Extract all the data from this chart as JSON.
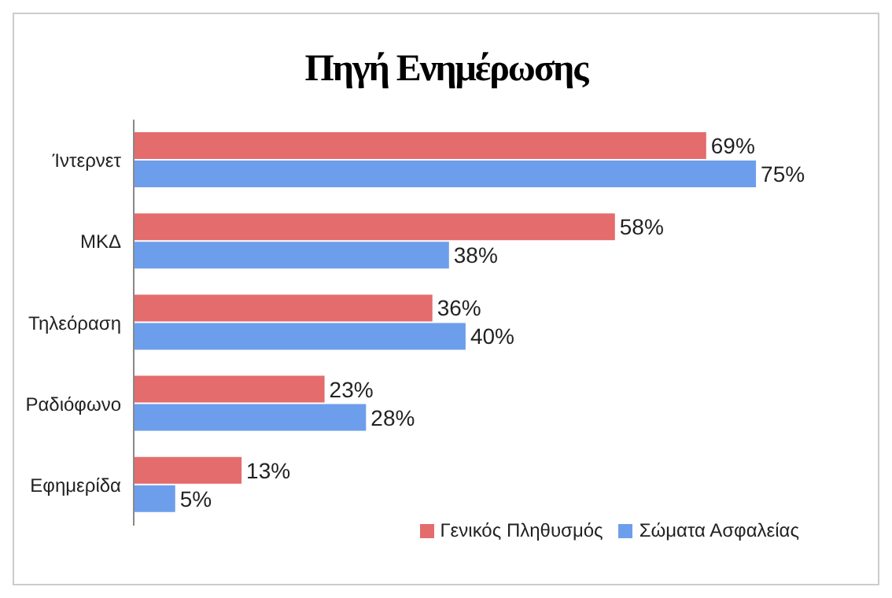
{
  "chart_data": {
    "type": "bar",
    "orientation": "horizontal",
    "title": "Πηγή Ενημέρωσης",
    "categories": [
      "Ίντερνετ",
      "ΜΚΔ",
      "Τηλεόραση",
      "Ραδιόφωνο",
      "Εφημερίδα"
    ],
    "series": [
      {
        "name": "Γενικός Πληθυσμός",
        "color": "#e46c6c",
        "values": [
          69,
          58,
          36,
          23,
          13
        ],
        "value_labels": [
          "69%",
          "58%",
          "36%",
          "23%",
          "13%"
        ]
      },
      {
        "name": "Σώματα Ασφαλείας",
        "color": "#6d9eeb",
        "values": [
          75,
          38,
          40,
          28,
          5
        ],
        "value_labels": [
          "75%",
          "38%",
          "40%",
          "28%",
          "5%"
        ]
      }
    ],
    "legend": "bottom right",
    "grid": false
  }
}
